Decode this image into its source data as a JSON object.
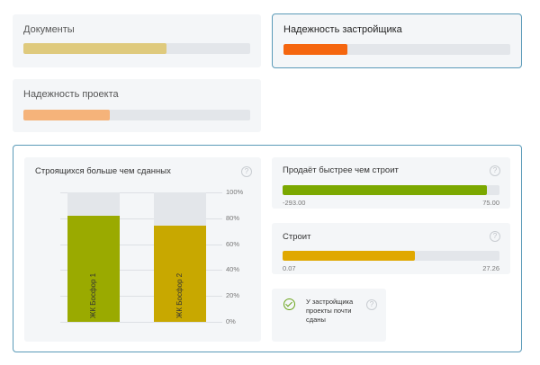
{
  "cards": [
    {
      "title": "Документы",
      "value": 0.63,
      "color": "#dfca7d"
    },
    {
      "title": "Надежность застройщика",
      "value": 0.28,
      "color": "#f5660f"
    },
    {
      "title": "Надежность проекта",
      "value": 0.38,
      "color": "#f5b37a"
    }
  ],
  "chart_card": {
    "title": "Строящихся больше чем сданных",
    "help": "?"
  },
  "chart_data": {
    "type": "bar",
    "categories": [
      "ЖК Босфор 1",
      "ЖК Босфор 2"
    ],
    "values": [
      82,
      74
    ],
    "colors": [
      "#9aaa00",
      "#c8a800"
    ],
    "ylim": [
      0,
      100
    ],
    "yticks": [
      "0%",
      "20%",
      "40%",
      "60%",
      "80%",
      "100%"
    ],
    "grid": true
  },
  "sells_card": {
    "title": "Продаёт быстрее чем строит",
    "min": "-293.00",
    "max": "75.00",
    "value": 0.94,
    "color": "#7ba800",
    "help": "?"
  },
  "builds_card": {
    "title": "Строит",
    "min": "0.07",
    "max": "27.26",
    "value": 0.61,
    "color": "#e0a800",
    "help": "?"
  },
  "status": {
    "text": "У застройщика проекты почти сданы",
    "help": "?",
    "icon": "check-circle-icon",
    "color": "#6aa41a"
  }
}
